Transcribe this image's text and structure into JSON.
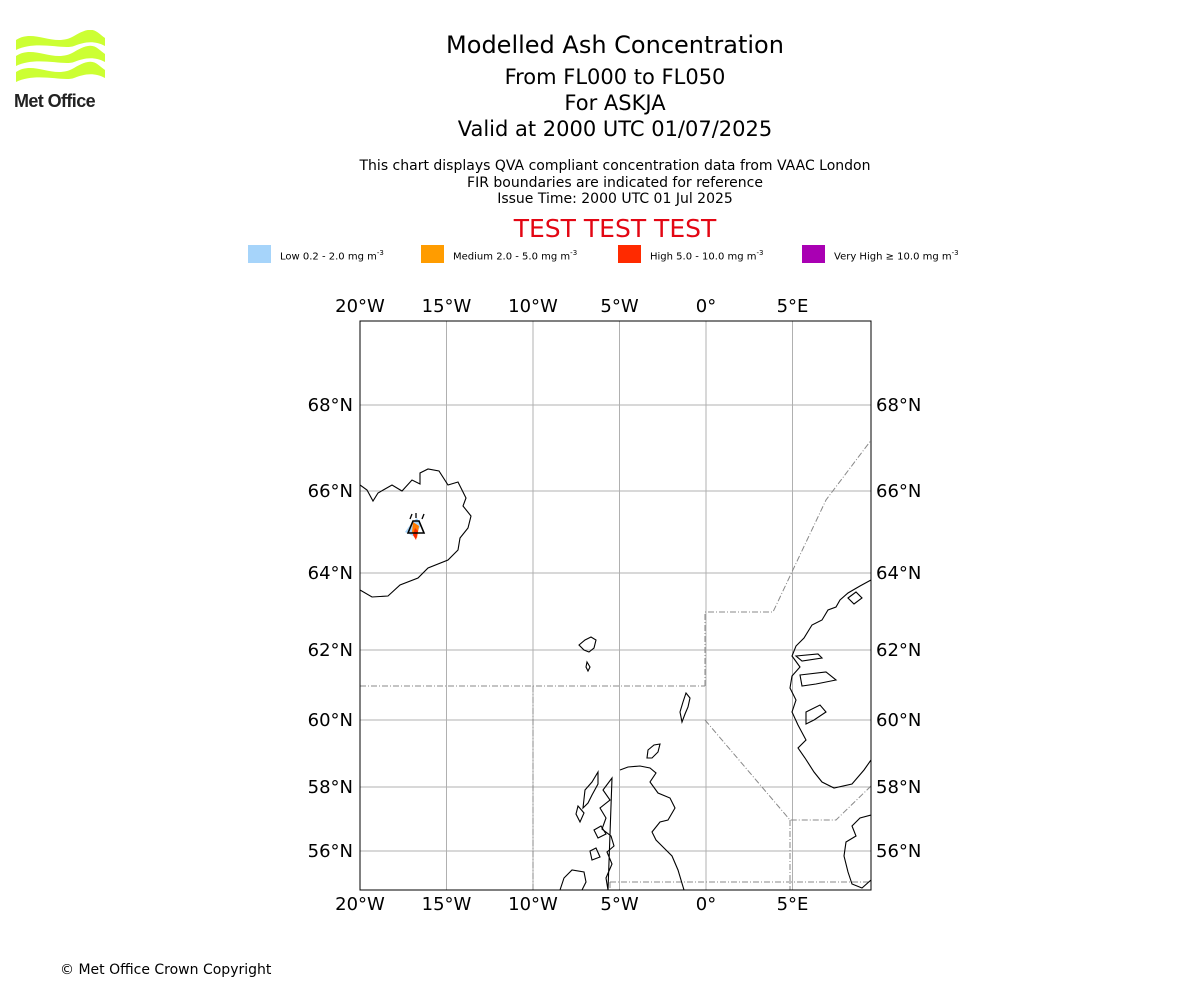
{
  "logo": {
    "text": "Met Office",
    "color": "#ccff33"
  },
  "title": {
    "main": "Modelled Ash Concentration",
    "levels": "From FL000 to FL050",
    "volcano": "For ASKJA",
    "valid": "Valid at 2000 UTC 01/07/2025"
  },
  "subtitle": {
    "line1": "This chart displays QVA compliant concentration data from VAAC London",
    "line2": "FIR boundaries are indicated for reference",
    "line3": "Issue Time: 2000 UTC 01 Jul 2025"
  },
  "warning": {
    "text": "TEST TEST TEST",
    "color": "#e30613"
  },
  "legend": [
    {
      "name": "Low",
      "range": "0.2 - 2.0",
      "unit_base": "mg m",
      "unit_exp": "-3",
      "color": "#a6d4fa"
    },
    {
      "name": "Medium",
      "range": "2.0 - 5.0",
      "unit_base": "mg m",
      "unit_exp": "-3",
      "color": "#ff9c00"
    },
    {
      "name": "High",
      "range": "5.0 - 10.0",
      "unit_base": "mg m",
      "unit_exp": "-3",
      "color": "#ff2a00"
    },
    {
      "name": "Very High",
      "range": "≥  10.0",
      "unit_base": "mg m",
      "unit_exp": "-3",
      "color": "#a900b3"
    }
  ],
  "map": {
    "lon_range": [
      -20,
      9.5
    ],
    "lat_range": [
      55,
      70
    ],
    "lon_ticks": [
      {
        "value": -20,
        "label": "20°W"
      },
      {
        "value": -15,
        "label": "15°W"
      },
      {
        "value": -10,
        "label": "10°W"
      },
      {
        "value": -5,
        "label": "5°W"
      },
      {
        "value": 0,
        "label": "0°"
      },
      {
        "value": 5,
        "label": "5°E"
      }
    ],
    "lat_ticks": [
      {
        "value": 68,
        "label": "68°N"
      },
      {
        "value": 66,
        "label": "66°N"
      },
      {
        "value": 64,
        "label": "64°N"
      },
      {
        "value": 62,
        "label": "62°N"
      },
      {
        "value": 60,
        "label": "60°N"
      },
      {
        "value": 58,
        "label": "58°N"
      },
      {
        "value": 56,
        "label": "56°N"
      }
    ],
    "gridlines": true,
    "volcano_marker": {
      "name": "volcano-icon",
      "lon": -16.75,
      "lat": 65.03
    }
  },
  "copyright": "© Met Office Crown Copyright"
}
